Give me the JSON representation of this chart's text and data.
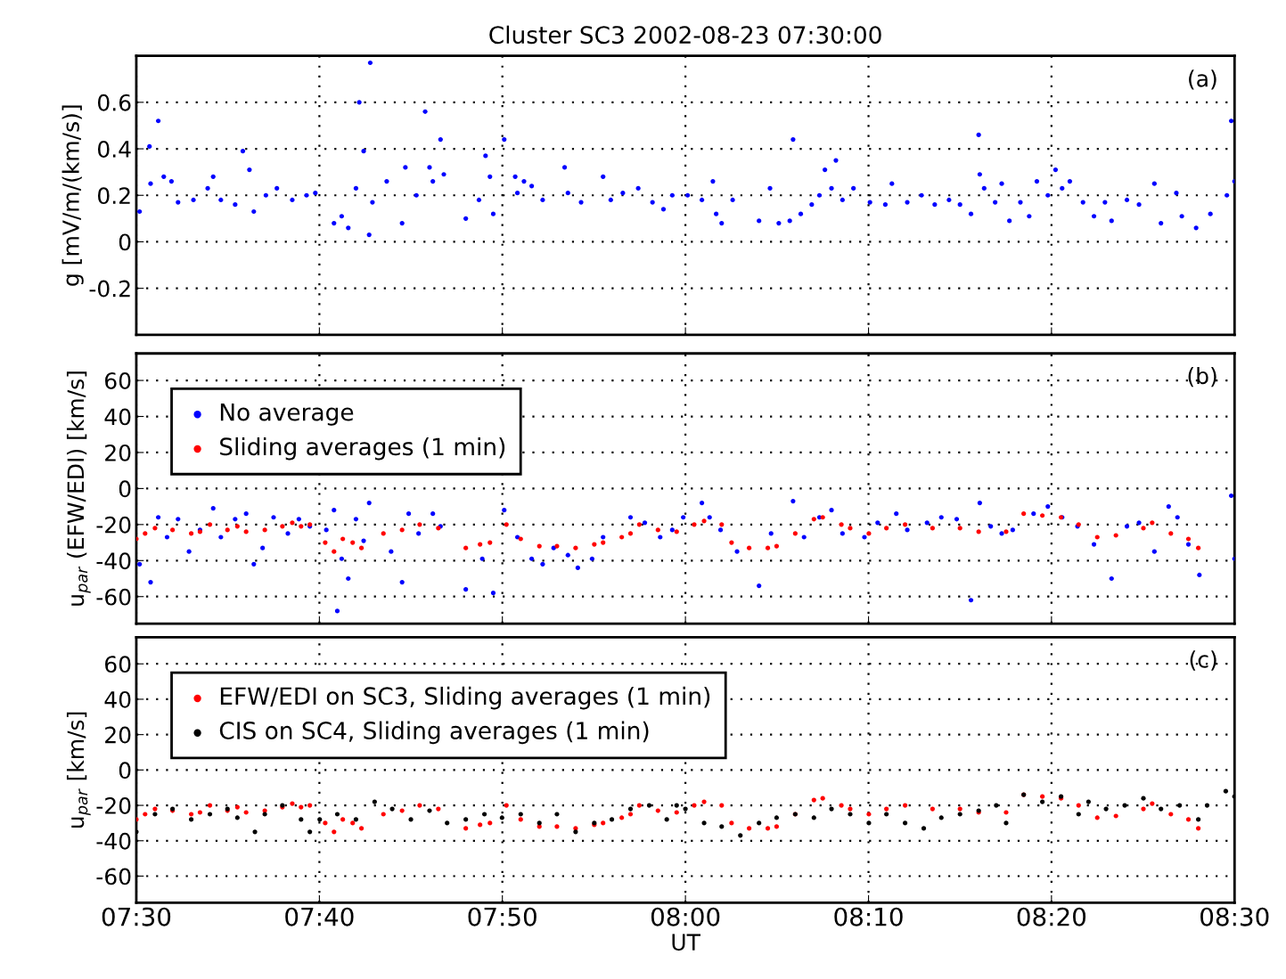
{
  "chart_data": [
    {
      "type": "scatter",
      "title": "Cluster SC3 2002-08-23 07:30:00",
      "ylabel": "g [mV/m/(km/s)]",
      "annotations": [
        "(a)"
      ],
      "xlim": [
        7.5,
        8.5
      ],
      "ylim": [
        -0.4,
        0.8
      ],
      "yticks": [
        -0.2,
        0,
        0.2,
        0.4,
        0.6
      ],
      "xticks": [
        {
          "value": 7.5,
          "label": null
        },
        {
          "value": 7.6667,
          "label": null
        },
        {
          "value": 7.8333,
          "label": null
        },
        {
          "value": 8.0,
          "label": null
        },
        {
          "value": 8.1667,
          "label": null
        },
        {
          "value": 8.3333,
          "label": null
        },
        {
          "value": 8.5,
          "label": null
        }
      ],
      "tick_labels": "y",
      "grid": true,
      "marker": "circle",
      "legend": false,
      "series": [
        {
          "color": "#0000ff",
          "x": [
            7.503,
            7.512,
            7.513,
            7.52,
            7.525,
            7.532,
            7.538,
            7.552,
            7.565,
            7.57,
            7.577,
            7.59,
            7.597,
            7.603,
            7.607,
            7.618,
            7.628,
            7.642,
            7.655,
            7.663,
            7.68,
            7.687,
            7.693,
            7.7,
            7.703,
            7.707,
            7.712,
            7.713,
            7.715,
            7.728,
            7.742,
            7.745,
            7.755,
            7.763,
            7.767,
            7.77,
            7.777,
            7.78,
            7.8,
            7.812,
            7.818,
            7.822,
            7.825,
            7.835,
            7.845,
            7.847,
            7.853,
            7.86,
            7.87,
            7.89,
            7.893,
            7.905,
            7.925,
            7.932,
            7.943,
            7.957,
            7.97,
            7.98,
            7.988,
            8.002,
            8.015,
            8.025,
            8.028,
            8.033,
            8.043,
            8.067,
            8.077,
            8.085,
            8.095,
            8.098,
            8.105,
            8.115,
            8.122,
            8.127,
            8.133,
            8.137,
            8.143,
            8.153,
            8.168,
            8.182,
            8.188,
            8.202,
            8.215,
            8.227,
            8.24,
            8.25,
            8.26,
            8.267,
            8.268,
            8.272,
            8.282,
            8.288,
            8.295,
            8.305,
            8.313,
            8.32,
            8.33,
            8.337,
            8.343,
            8.35,
            8.362,
            8.372,
            8.382,
            8.388,
            8.402,
            8.413,
            8.427,
            8.433,
            8.447,
            8.452,
            8.465,
            8.478,
            8.493,
            8.497,
            8.5
          ],
          "values": [
            0.13,
            0.41,
            0.25,
            0.52,
            0.28,
            0.26,
            0.17,
            0.18,
            0.23,
            0.28,
            0.18,
            0.16,
            0.39,
            0.31,
            0.13,
            0.2,
            0.23,
            0.18,
            0.2,
            0.21,
            0.08,
            0.11,
            0.06,
            0.23,
            0.6,
            0.39,
            0.03,
            0.77,
            0.17,
            0.26,
            0.08,
            0.32,
            0.2,
            0.56,
            0.32,
            0.26,
            0.44,
            0.29,
            0.1,
            0.18,
            0.37,
            0.28,
            0.12,
            0.44,
            0.28,
            0.21,
            0.26,
            0.24,
            0.18,
            0.32,
            0.21,
            0.17,
            0.28,
            0.18,
            0.21,
            0.23,
            0.17,
            0.14,
            0.2,
            0.2,
            0.18,
            0.26,
            0.12,
            0.08,
            0.18,
            0.09,
            0.23,
            0.08,
            0.09,
            0.44,
            0.12,
            0.16,
            0.2,
            0.31,
            0.23,
            0.35,
            0.18,
            0.23,
            0.17,
            0.16,
            0.25,
            0.17,
            0.2,
            0.16,
            0.18,
            0.16,
            0.12,
            0.46,
            0.29,
            0.23,
            0.17,
            0.25,
            0.09,
            0.17,
            0.11,
            0.26,
            0.2,
            0.31,
            0.23,
            0.26,
            0.17,
            0.11,
            0.17,
            0.09,
            0.18,
            0.16,
            0.25,
            0.08,
            0.21,
            0.11,
            0.06,
            0.12,
            0.2,
            0.52,
            0.26
          ]
        }
      ]
    },
    {
      "type": "scatter",
      "ylabel": "u$_{par}$ (EFW/EDI) [km/s]",
      "annotations": [
        "(b)"
      ],
      "xlim": [
        7.5,
        8.5
      ],
      "ylim": [
        -75,
        75
      ],
      "yticks": [
        -60,
        -40,
        -20,
        0,
        20,
        40,
        60
      ],
      "xticks": [
        {
          "value": 7.5,
          "label": null
        },
        {
          "value": 7.6667,
          "label": null
        },
        {
          "value": 7.8333,
          "label": null
        },
        {
          "value": 8.0,
          "label": null
        },
        {
          "value": 8.1667,
          "label": null
        },
        {
          "value": 8.3333,
          "label": null
        },
        {
          "value": 8.5,
          "label": null
        }
      ],
      "tick_labels": "y",
      "grid": true,
      "marker": "circle",
      "legend": "top left",
      "series": [
        {
          "name": "No average",
          "color": "#0000ff",
          "x": [
            7.503,
            7.513,
            7.52,
            7.528,
            7.538,
            7.548,
            7.558,
            7.57,
            7.577,
            7.59,
            7.6,
            7.607,
            7.615,
            7.625,
            7.638,
            7.648,
            7.658,
            7.673,
            7.68,
            7.683,
            7.687,
            7.693,
            7.7,
            7.707,
            7.712,
            7.732,
            7.742,
            7.748,
            7.757,
            7.77,
            7.777,
            7.8,
            7.815,
            7.825,
            7.835,
            7.847,
            7.86,
            7.87,
            7.88,
            7.893,
            7.902,
            7.915,
            7.925,
            7.95,
            7.963,
            7.977,
            7.988,
            7.998,
            8.015,
            8.022,
            8.032,
            8.047,
            8.067,
            8.078,
            8.098,
            8.108,
            8.122,
            8.133,
            8.143,
            8.163,
            8.175,
            8.192,
            8.202,
            8.22,
            8.233,
            8.247,
            8.26,
            8.268,
            8.278,
            8.288,
            8.298,
            8.317,
            8.33,
            8.343,
            8.357,
            8.372,
            8.388,
            8.402,
            8.413,
            8.427,
            8.44,
            8.448,
            8.458,
            8.468,
            8.497,
            8.5
          ],
          "values": [
            -42,
            -52,
            -16,
            -27,
            -17,
            -35,
            -23,
            -11,
            -27,
            -17,
            -14,
            -42,
            -33,
            -16,
            -25,
            -17,
            -21,
            -23,
            -12,
            -68,
            -39,
            -50,
            -17,
            -29,
            -8,
            -35,
            -52,
            -14,
            -25,
            -14,
            -21,
            -56,
            -39,
            -58,
            -12,
            -27,
            -39,
            -42,
            -33,
            -37,
            -44,
            -39,
            -27,
            -16,
            -19,
            -27,
            -23,
            -16,
            -8,
            -16,
            -23,
            -35,
            -54,
            -25,
            -7,
            -27,
            -16,
            -12,
            -25,
            -27,
            -19,
            -14,
            -23,
            -19,
            -16,
            -17,
            -62,
            -8,
            -21,
            -25,
            -23,
            -14,
            -10,
            -16,
            -21,
            -31,
            -50,
            -21,
            -19,
            -35,
            -10,
            -16,
            -31,
            -48,
            -4,
            -39
          ]
        },
        {
          "name": "Sliding averages (1 min)",
          "color": "#ff0000",
          "x": [
            7.5,
            7.508,
            7.517,
            7.533,
            7.55,
            7.558,
            7.567,
            7.583,
            7.592,
            7.6,
            7.617,
            7.633,
            7.642,
            7.65,
            7.658,
            7.672,
            7.68,
            7.688,
            7.697,
            7.705,
            7.725,
            7.742,
            7.758,
            7.775,
            7.8,
            7.813,
            7.822,
            7.837,
            7.85,
            7.867,
            7.883,
            7.9,
            7.917,
            7.925,
            7.942,
            7.95,
            7.958,
            7.975,
            7.992,
            8.008,
            8.017,
            8.033,
            8.042,
            8.058,
            8.075,
            8.083,
            8.1,
            8.117,
            8.125,
            8.142,
            8.15,
            8.167,
            8.183,
            8.2,
            8.225,
            8.25,
            8.267,
            8.292,
            8.308,
            8.325,
            8.342,
            8.358,
            8.375,
            8.392,
            8.417,
            8.425,
            8.442,
            8.458,
            8.467
          ],
          "values": [
            -28,
            -25,
            -22,
            -23,
            -25,
            -24,
            -20,
            -23,
            -21,
            -24,
            -23,
            -21,
            -19,
            -21,
            -20,
            -30,
            -35,
            -28,
            -30,
            -33,
            -25,
            -23,
            -20,
            -22,
            -33,
            -31,
            -30,
            -20,
            -28,
            -32,
            -32,
            -33,
            -31,
            -30,
            -27,
            -25,
            -20,
            -23,
            -24,
            -20,
            -18,
            -20,
            -30,
            -33,
            -33,
            -32,
            -25,
            -17,
            -16,
            -20,
            -22,
            -25,
            -22,
            -20,
            -22,
            -22,
            -24,
            -24,
            -14,
            -15,
            -16,
            -20,
            -27,
            -26,
            -22,
            -19,
            -25,
            -28,
            -33
          ]
        }
      ]
    },
    {
      "type": "scatter",
      "xlabel": "UT",
      "ylabel": "u$_{par}$ [km/s]",
      "annotations": [
        "(c)"
      ],
      "xlim": [
        7.5,
        8.5
      ],
      "ylim": [
        -75,
        75
      ],
      "yticks": [
        -60,
        -40,
        -20,
        0,
        20,
        40,
        60
      ],
      "xticks": [
        {
          "value": 7.5,
          "label": "07:30"
        },
        {
          "value": 7.6667,
          "label": "07:40"
        },
        {
          "value": 7.8333,
          "label": "07:50"
        },
        {
          "value": 8.0,
          "label": "08:00"
        },
        {
          "value": 8.1667,
          "label": "08:10"
        },
        {
          "value": 8.3333,
          "label": "08:20"
        },
        {
          "value": 8.5,
          "label": "08:30"
        }
      ],
      "grid": true,
      "marker": "circle",
      "legend": "top left",
      "series": [
        {
          "name": "EFW/EDI on SC3, Sliding averages (1 min)",
          "color": "#ff0000",
          "x": [
            7.5,
            7.508,
            7.517,
            7.533,
            7.55,
            7.558,
            7.567,
            7.583,
            7.592,
            7.6,
            7.617,
            7.633,
            7.642,
            7.65,
            7.658,
            7.672,
            7.68,
            7.688,
            7.697,
            7.705,
            7.725,
            7.742,
            7.758,
            7.775,
            7.8,
            7.813,
            7.822,
            7.837,
            7.85,
            7.867,
            7.883,
            7.9,
            7.917,
            7.925,
            7.942,
            7.95,
            7.958,
            7.975,
            7.992,
            8.008,
            8.017,
            8.033,
            8.042,
            8.058,
            8.075,
            8.083,
            8.1,
            8.117,
            8.125,
            8.142,
            8.15,
            8.167,
            8.183,
            8.2,
            8.225,
            8.25,
            8.267,
            8.292,
            8.308,
            8.325,
            8.342,
            8.358,
            8.375,
            8.392,
            8.417,
            8.425,
            8.442,
            8.458,
            8.467
          ],
          "values": [
            -28,
            -25,
            -22,
            -23,
            -25,
            -24,
            -20,
            -23,
            -21,
            -24,
            -23,
            -21,
            -19,
            -21,
            -20,
            -30,
            -35,
            -28,
            -30,
            -33,
            -25,
            -23,
            -20,
            -22,
            -33,
            -31,
            -30,
            -20,
            -28,
            -32,
            -32,
            -33,
            -31,
            -30,
            -27,
            -25,
            -20,
            -23,
            -24,
            -20,
            -18,
            -20,
            -30,
            -33,
            -33,
            -32,
            -25,
            -17,
            -16,
            -20,
            -22,
            -25,
            -22,
            -20,
            -22,
            -22,
            -24,
            -24,
            -14,
            -15,
            -16,
            -20,
            -27,
            -26,
            -22,
            -19,
            -25,
            -28,
            -33
          ]
        },
        {
          "name": "CIS on SC4, Sliding averages (1 min)",
          "color": "#000000",
          "x": [
            7.5,
            7.517,
            7.533,
            7.55,
            7.567,
            7.583,
            7.592,
            7.608,
            7.617,
            7.633,
            7.65,
            7.658,
            7.667,
            7.683,
            7.7,
            7.717,
            7.733,
            7.75,
            7.767,
            7.783,
            7.8,
            7.817,
            7.833,
            7.85,
            7.867,
            7.883,
            7.9,
            7.917,
            7.933,
            7.95,
            7.967,
            7.983,
            7.992,
            8.0,
            8.017,
            8.033,
            8.05,
            8.067,
            8.083,
            8.1,
            8.117,
            8.133,
            8.15,
            8.167,
            8.183,
            8.2,
            8.217,
            8.233,
            8.25,
            8.267,
            8.283,
            8.292,
            8.308,
            8.325,
            8.342,
            8.358,
            8.367,
            8.383,
            8.4,
            8.417,
            8.433,
            8.45,
            8.467,
            8.475,
            8.492,
            8.5
          ],
          "values": [
            -35,
            -25,
            -22,
            -28,
            -25,
            -22,
            -27,
            -35,
            -25,
            -20,
            -28,
            -35,
            -28,
            -25,
            -28,
            -18,
            -22,
            -28,
            -23,
            -30,
            -28,
            -25,
            -27,
            -25,
            -30,
            -25,
            -35,
            -30,
            -28,
            -22,
            -20,
            -28,
            -20,
            -22,
            -30,
            -32,
            -37,
            -30,
            -27,
            -25,
            -27,
            -22,
            -25,
            -30,
            -25,
            -30,
            -33,
            -27,
            -25,
            -23,
            -20,
            -30,
            -14,
            -18,
            -15,
            -25,
            -18,
            -22,
            -20,
            -16,
            -22,
            -20,
            -28,
            -20,
            -12,
            -15
          ]
        }
      ]
    }
  ]
}
